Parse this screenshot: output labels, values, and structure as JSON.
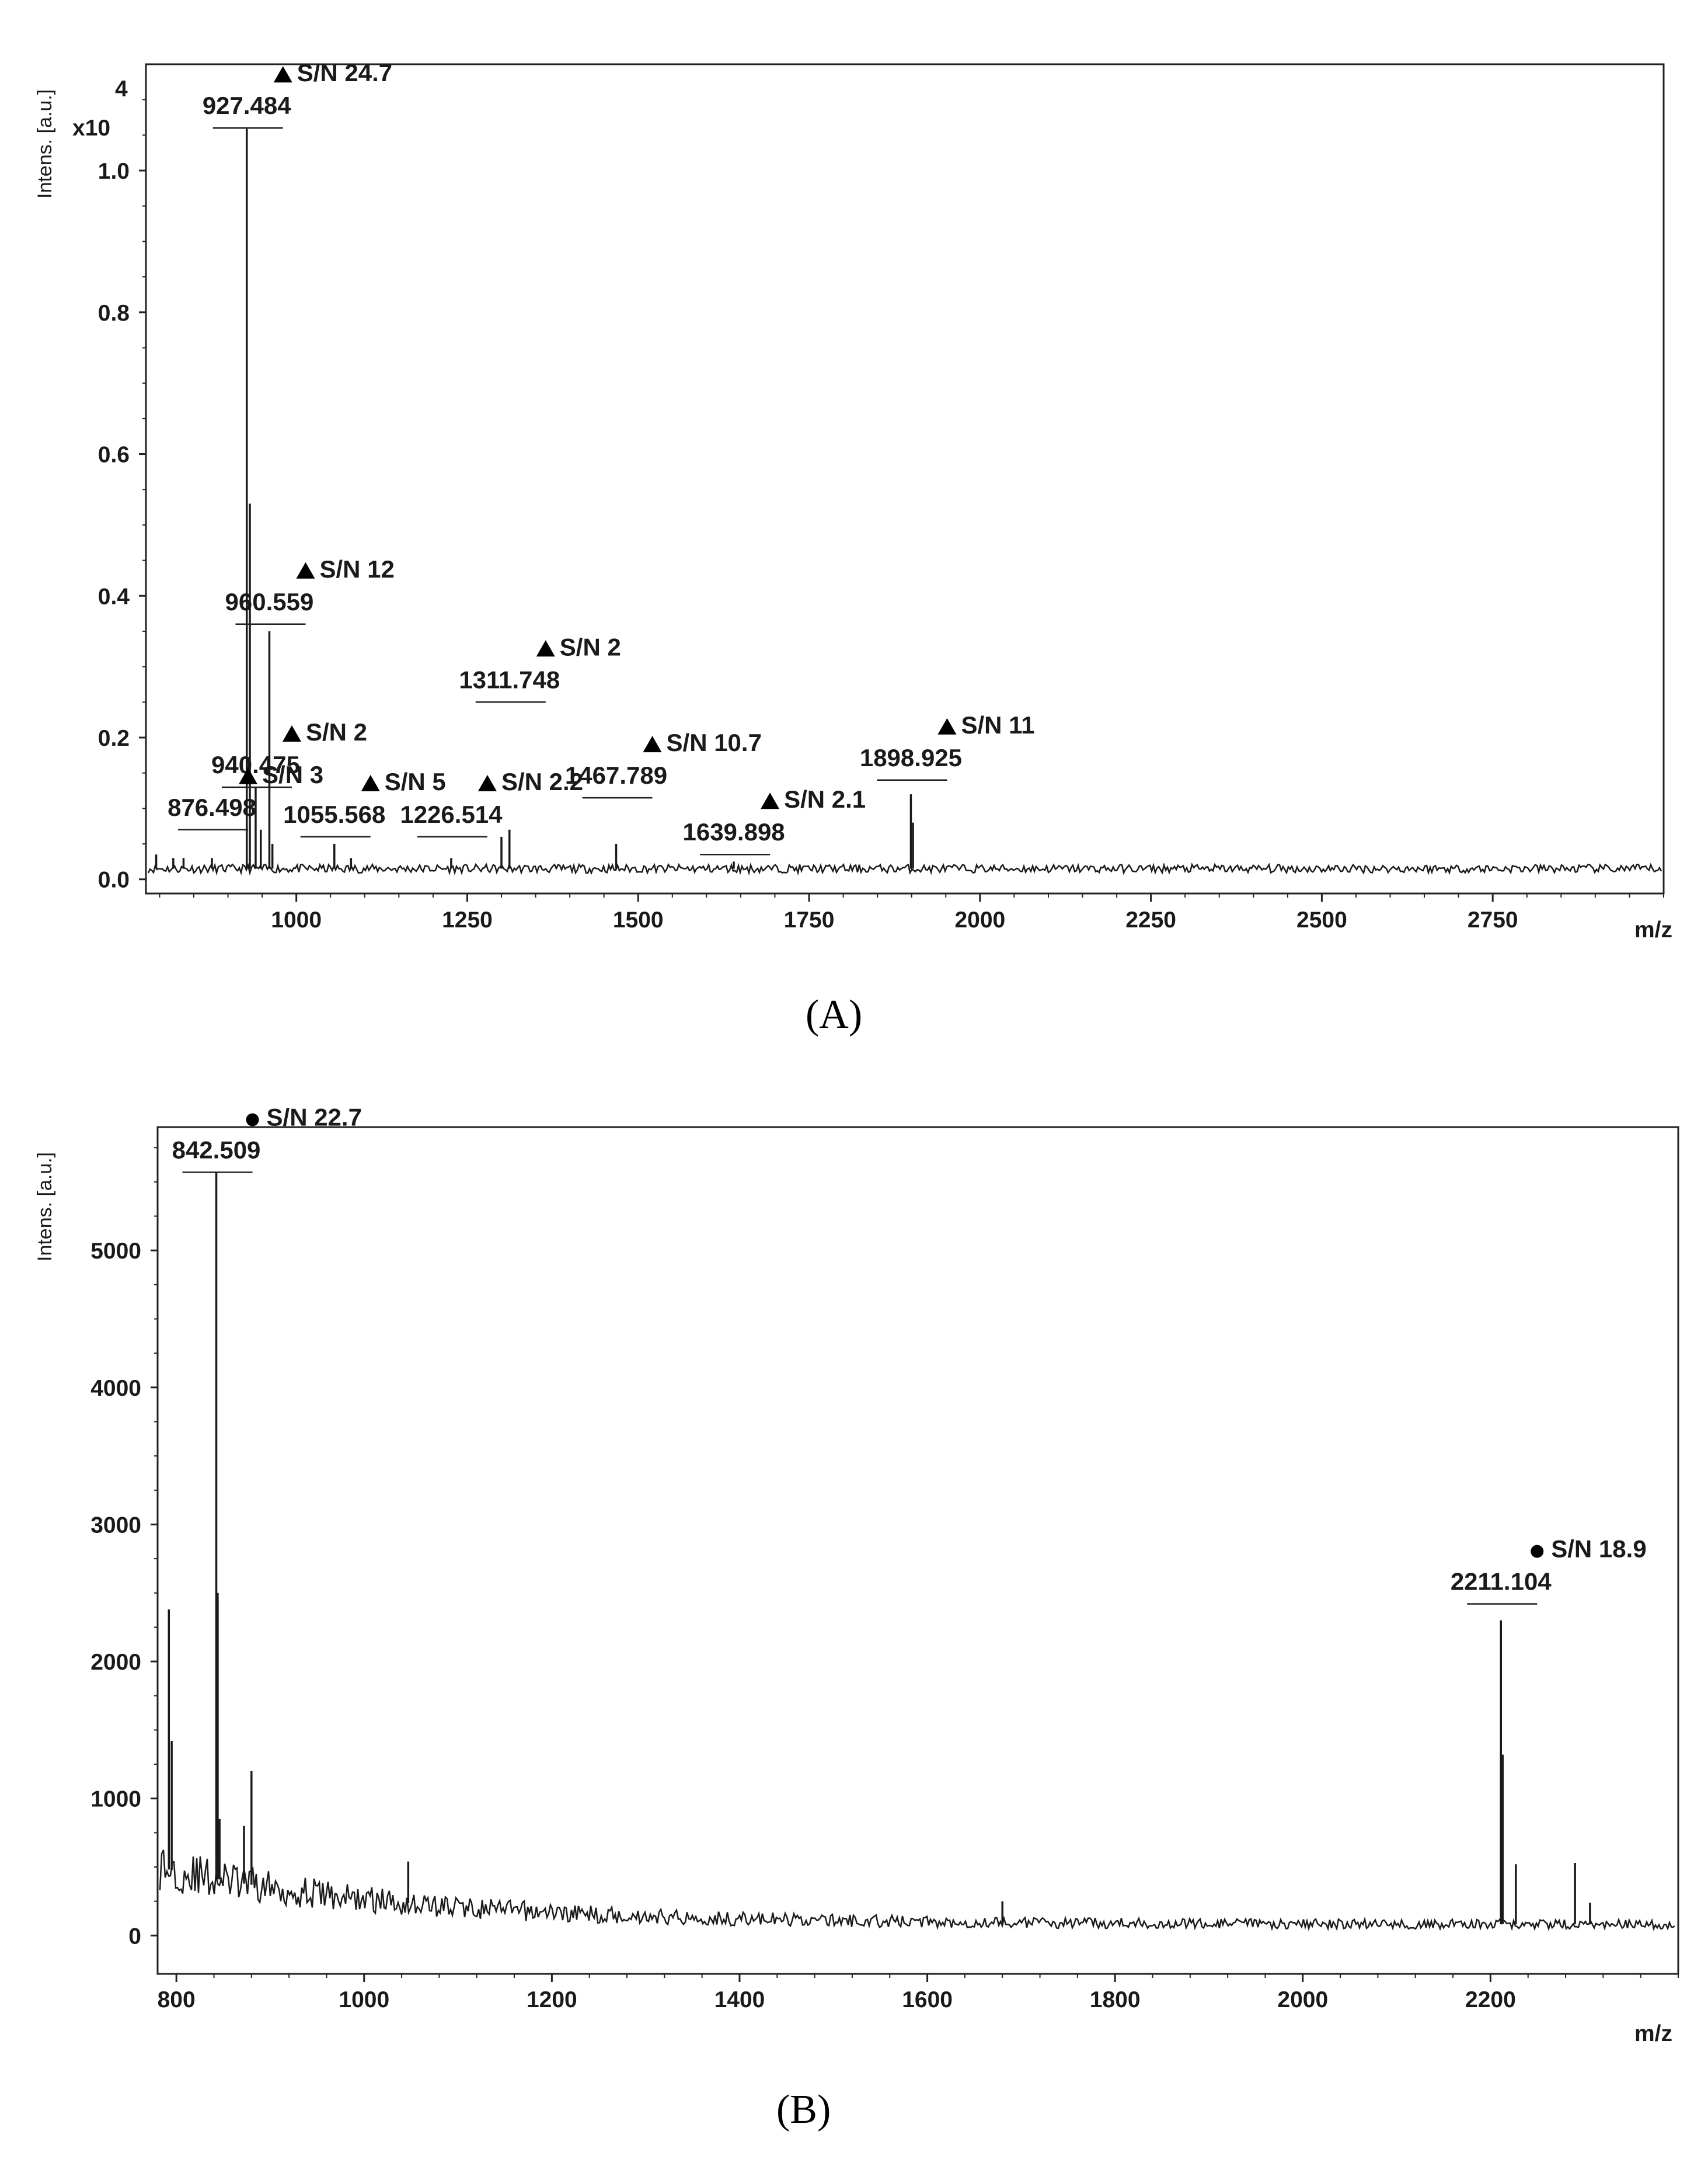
{
  "chart_data": [
    {
      "type": "line",
      "panel_label": "(A)",
      "ylabel": "Intens. [a.u.]",
      "xlabel": "m/z",
      "y_multiplier": "x10",
      "y_exponent": "4",
      "xlim": [
        780,
        3000
      ],
      "ylim": [
        -0.02,
        1.15
      ],
      "x_ticks": [
        1000,
        1250,
        1500,
        1750,
        2000,
        2250,
        2500,
        2750
      ],
      "y_ticks": [
        0.0,
        0.2,
        0.4,
        0.6,
        0.8,
        1.0
      ],
      "x_tick_labels": [
        "1000",
        "1250",
        "1500",
        "1750",
        "2000",
        "2250",
        "2500",
        "2750"
      ],
      "y_tick_labels": [
        "0.0",
        "0.2",
        "0.4",
        "0.6",
        "0.8",
        "1.0"
      ],
      "baseline": 0.015,
      "peaks": [
        {
          "mz": 795,
          "intensity": 0.035
        },
        {
          "mz": 820,
          "intensity": 0.03
        },
        {
          "mz": 835,
          "intensity": 0.03
        },
        {
          "mz": 876.5,
          "intensity": 0.03
        },
        {
          "mz": 927.484,
          "intensity": 1.06
        },
        {
          "mz": 932,
          "intensity": 0.53
        },
        {
          "mz": 940.475,
          "intensity": 0.13
        },
        {
          "mz": 948,
          "intensity": 0.07
        },
        {
          "mz": 960.559,
          "intensity": 0.35
        },
        {
          "mz": 965,
          "intensity": 0.05
        },
        {
          "mz": 1055.568,
          "intensity": 0.05
        },
        {
          "mz": 1080,
          "intensity": 0.03
        },
        {
          "mz": 1226.514,
          "intensity": 0.03
        },
        {
          "mz": 1300,
          "intensity": 0.06
        },
        {
          "mz": 1311.748,
          "intensity": 0.07
        },
        {
          "mz": 1467.789,
          "intensity": 0.05
        },
        {
          "mz": 1639.898,
          "intensity": 0.025
        },
        {
          "mz": 1898.925,
          "intensity": 0.12
        },
        {
          "mz": 1902,
          "intensity": 0.08
        }
      ],
      "annotations": [
        {
          "mz_label": "927.484",
          "sn": "S/N 24.7",
          "marker": "triangle",
          "mz": 927.484,
          "level": 1.06
        },
        {
          "mz_label": "960.559",
          "sn": "S/N 12",
          "marker": "triangle",
          "mz": 960.559,
          "level": 0.36
        },
        {
          "mz_label": "940.475",
          "sn": "S/N 2",
          "marker": "triangle",
          "mz": 940.475,
          "level": 0.13
        },
        {
          "mz_label": "876.498",
          "sn": "S/N 3",
          "marker": "triangle",
          "mz": 876.498,
          "level": 0.07
        },
        {
          "mz_label": "1055.568",
          "sn": "S/N 5",
          "marker": "triangle",
          "mz": 1055.568,
          "level": 0.06
        },
        {
          "mz_label": "1226.514",
          "sn": "S/N 2.2",
          "marker": "triangle",
          "mz": 1226.514,
          "level": 0.06
        },
        {
          "mz_label": "1311.748",
          "sn": "S/N 2",
          "marker": "triangle",
          "mz": 1311.748,
          "level": 0.25
        },
        {
          "mz_label": "1467.789",
          "sn": "S/N 10.7",
          "marker": "triangle",
          "mz": 1467.789,
          "level": 0.115
        },
        {
          "mz_label": "1639.898",
          "sn": "S/N 2.1",
          "marker": "triangle",
          "mz": 1639.898,
          "level": 0.035
        },
        {
          "mz_label": "1898.925",
          "sn": "S/N 11",
          "marker": "triangle",
          "mz": 1898.925,
          "level": 0.14
        }
      ]
    },
    {
      "type": "line",
      "panel_label": "(B)",
      "ylabel": "Intens. [a.u.]",
      "xlabel": "m/z",
      "xlim": [
        780,
        2400
      ],
      "ylim": [
        -280,
        5900
      ],
      "x_ticks": [
        800,
        1000,
        1200,
        1400,
        1600,
        1800,
        2000,
        2200
      ],
      "y_ticks": [
        0,
        1000,
        2000,
        3000,
        4000,
        5000
      ],
      "x_tick_labels": [
        "800",
        "1000",
        "1200",
        "1400",
        "1600",
        "1800",
        "2000",
        "2200"
      ],
      "y_tick_labels": [
        "0",
        "1000",
        "2000",
        "3000",
        "4000",
        "5000"
      ],
      "baseline_start": 500,
      "baseline_end": 80,
      "peaks": [
        {
          "mz": 792,
          "intensity": 2380
        },
        {
          "mz": 795,
          "intensity": 1420
        },
        {
          "mz": 842.509,
          "intensity": 5570
        },
        {
          "mz": 844,
          "intensity": 2500
        },
        {
          "mz": 846,
          "intensity": 850
        },
        {
          "mz": 872,
          "intensity": 800
        },
        {
          "mz": 880,
          "intensity": 1200
        },
        {
          "mz": 1047,
          "intensity": 540
        },
        {
          "mz": 1680,
          "intensity": 250
        },
        {
          "mz": 2211.104,
          "intensity": 2300
        },
        {
          "mz": 2213,
          "intensity": 1320
        },
        {
          "mz": 2227,
          "intensity": 520
        },
        {
          "mz": 2290,
          "intensity": 530
        },
        {
          "mz": 2306,
          "intensity": 240
        }
      ],
      "annotations": [
        {
          "mz_label": "842.509",
          "sn": "S/N 22.7",
          "marker": "dot",
          "mz": 842.509,
          "level": 5570
        },
        {
          "mz_label": "2211.104",
          "sn": "S/N 18.9",
          "marker": "dot",
          "mz": 2211.104,
          "level": 2420
        }
      ]
    }
  ]
}
